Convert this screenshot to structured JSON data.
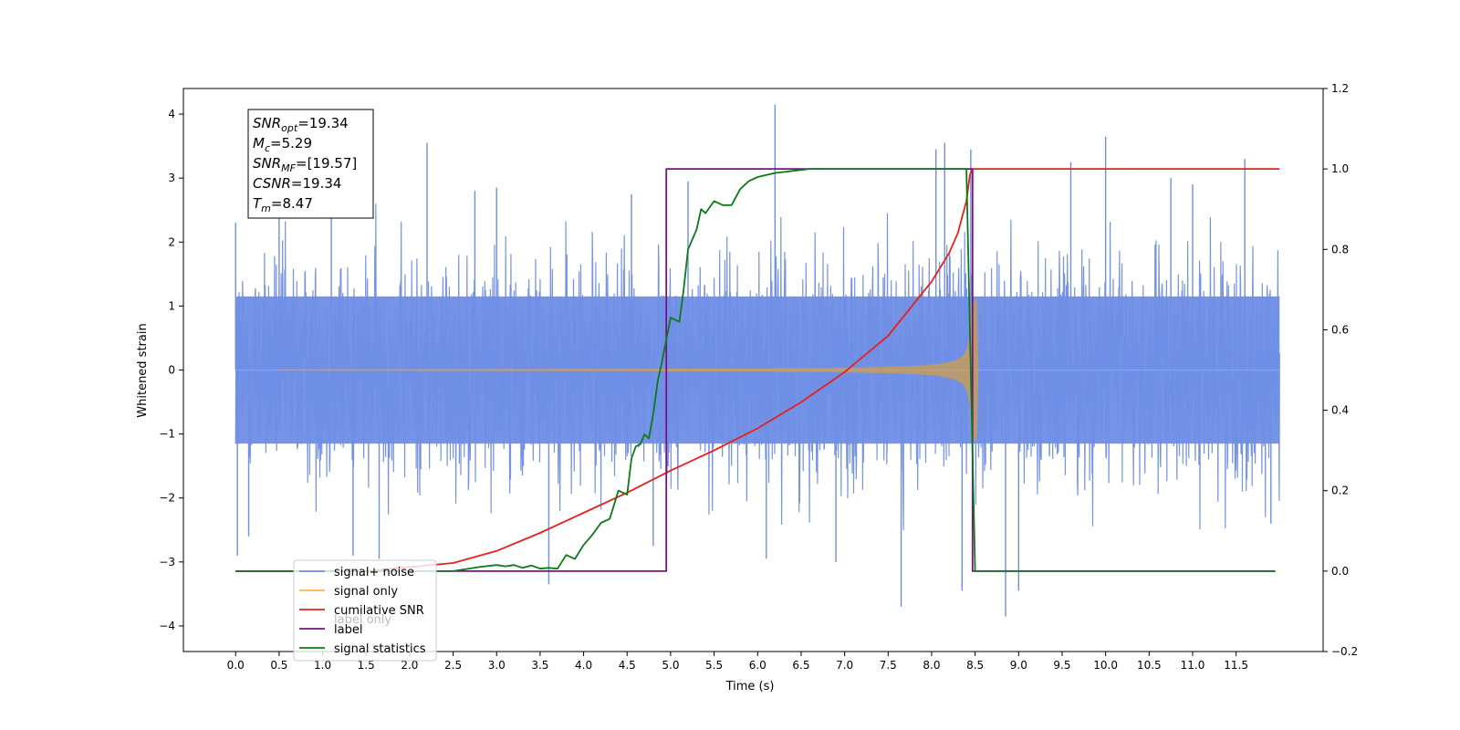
{
  "chart_data": {
    "type": "line",
    "xlabel": "Time (s)",
    "ylabel": "Whitened strain",
    "x_ticks": [
      "0.0",
      "0.5",
      "1.0",
      "1.5",
      "2.0",
      "2.5",
      "3.0",
      "3.5",
      "4.0",
      "4.5",
      "5.0",
      "5.5",
      "6.0",
      "6.5",
      "7.0",
      "7.5",
      "8.0",
      "8.5",
      "9.0",
      "9.5",
      "10.0",
      "10.5",
      "11.0",
      "11.5"
    ],
    "xlim": [
      -0.6,
      12.5
    ],
    "ylim_left": [
      -4.4,
      4.4
    ],
    "yticks_left": [
      "−4",
      "−3",
      "−2",
      "−1",
      "0",
      "1",
      "2",
      "3",
      "4"
    ],
    "ylim_right": [
      -0.2,
      1.2
    ],
    "yticks_right": [
      "−0.2",
      "0.0",
      "0.2",
      "0.4",
      "0.6",
      "0.8",
      "1.0",
      "1.2"
    ],
    "legend_position": "lower-left",
    "stats_box": {
      "lines": [
        {
          "sym": "SNR",
          "sub": "opt",
          "val": "=19.34"
        },
        {
          "sym": "M",
          "sub": "c",
          "val": "=5.29"
        },
        {
          "sym": "SNR",
          "sub": "MF",
          "val": "=[19.57]"
        },
        {
          "sym": "CSNR",
          "sub": "",
          "val": "=19.34"
        },
        {
          "sym": "T",
          "sub": "m",
          "val": "=8.47"
        }
      ]
    },
    "noise_spikes": [
      {
        "x": 0.0,
        "y": 2.3
      },
      {
        "x": 0.02,
        "y": -2.9
      },
      {
        "x": 0.15,
        "y": -2.6
      },
      {
        "x": 1.1,
        "y": 2.9
      },
      {
        "x": 2.2,
        "y": 3.55
      },
      {
        "x": 3.0,
        "y": 2.85
      },
      {
        "x": 3.6,
        "y": -3.35
      },
      {
        "x": 4.8,
        "y": -2.75
      },
      {
        "x": 6.2,
        "y": 4.15
      },
      {
        "x": 6.1,
        "y": -2.95
      },
      {
        "x": 7.65,
        "y": -3.7
      },
      {
        "x": 8.05,
        "y": 3.45
      },
      {
        "x": 8.15,
        "y": 3.55
      },
      {
        "x": 8.35,
        "y": -3.45
      },
      {
        "x": 8.45,
        "y": 3.45
      },
      {
        "x": 8.85,
        "y": -3.85
      },
      {
        "x": 9.0,
        "y": -3.45
      },
      {
        "x": 10.0,
        "y": 3.65
      },
      {
        "x": 11.6,
        "y": 3.3
      },
      {
        "x": 11.0,
        "y": 2.9
      },
      {
        "x": 1.35,
        "y": -2.9
      },
      {
        "x": 1.65,
        "y": -2.95
      },
      {
        "x": 2.75,
        "y": 2.8
      },
      {
        "x": 9.6,
        "y": 3.25
      },
      {
        "x": 10.75,
        "y": 3.0
      },
      {
        "x": 5.2,
        "y": 2.95
      },
      {
        "x": 4.55,
        "y": 2.75
      },
      {
        "x": 0.5,
        "y": 2.4
      },
      {
        "x": 6.9,
        "y": -3.0
      },
      {
        "x": 11.9,
        "y": -2.4
      }
    ],
    "series": [
      {
        "name": "signal+ noise",
        "color": "#6f8ee6",
        "axis": "left",
        "kind": "noise",
        "x_range": [
          0.0,
          12.0
        ],
        "envelope": 2.0
      },
      {
        "name": "signal only",
        "color": "#ffb347",
        "axis": "left",
        "kind": "chirp",
        "x_range": [
          0.0,
          12.0
        ],
        "start": 0.5,
        "merger": 8.47,
        "peak_amplitude": 1.1
      },
      {
        "name": "cumilative SNR",
        "color": "#e8201a",
        "axis": "right",
        "x": [
          0.0,
          1.5,
          2.5,
          3.0,
          3.5,
          4.0,
          4.5,
          5.0,
          5.5,
          6.0,
          6.5,
          7.0,
          7.5,
          8.0,
          8.2,
          8.3,
          8.4,
          8.44,
          8.47,
          12.0
        ],
        "y": [
          0.0,
          0.0,
          0.02,
          0.05,
          0.095,
          0.145,
          0.195,
          0.25,
          0.3,
          0.355,
          0.42,
          0.495,
          0.585,
          0.72,
          0.79,
          0.84,
          0.92,
          0.985,
          1.0,
          1.0
        ]
      },
      {
        "name": "label",
        "color": "#7b0f86",
        "axis": "right",
        "x": [
          0.0,
          4.95,
          4.95,
          8.47,
          8.47,
          11.95
        ],
        "y": [
          0.0,
          0.0,
          1.0,
          1.0,
          0.0,
          0.0
        ]
      },
      {
        "name": "signal statistics",
        "color": "#0a7b16",
        "axis": "right",
        "x": [
          0.0,
          2.5,
          2.8,
          3.0,
          3.1,
          3.2,
          3.3,
          3.4,
          3.5,
          3.6,
          3.7,
          3.8,
          3.9,
          4.0,
          4.1,
          4.2,
          4.3,
          4.4,
          4.5,
          4.55,
          4.6,
          4.65,
          4.7,
          4.75,
          4.8,
          4.85,
          4.9,
          5.0,
          5.1,
          5.15,
          5.2,
          5.3,
          5.35,
          5.4,
          5.5,
          5.6,
          5.7,
          5.8,
          5.9,
          6.0,
          6.1,
          6.2,
          6.4,
          6.6,
          7.0,
          8.0,
          8.4,
          8.5,
          8.52,
          11.95
        ],
        "y": [
          0.0,
          0.0,
          0.01,
          0.015,
          0.012,
          0.015,
          0.008,
          0.014,
          0.006,
          0.008,
          0.006,
          0.04,
          0.03,
          0.065,
          0.09,
          0.12,
          0.13,
          0.2,
          0.19,
          0.28,
          0.31,
          0.315,
          0.34,
          0.33,
          0.39,
          0.47,
          0.52,
          0.63,
          0.62,
          0.7,
          0.8,
          0.85,
          0.9,
          0.89,
          0.92,
          0.91,
          0.91,
          0.95,
          0.97,
          0.98,
          0.985,
          0.99,
          0.995,
          1.0,
          1.0,
          1.0,
          1.0,
          0.0,
          0.0,
          0.0
        ]
      }
    ],
    "legend": [
      {
        "label": "signal+ noise",
        "color": "#6f8ee6"
      },
      {
        "label": "signal only",
        "color": "#ffb347"
      },
      {
        "label": "cumilative SNR",
        "color": "#e8201a"
      },
      {
        "label": "label",
        "color": "#7b0f86"
      },
      {
        "label": "signal statistics",
        "color": "#0a7b16"
      }
    ],
    "legend_ghost_labels": [
      "label only",
      "signal only"
    ]
  }
}
